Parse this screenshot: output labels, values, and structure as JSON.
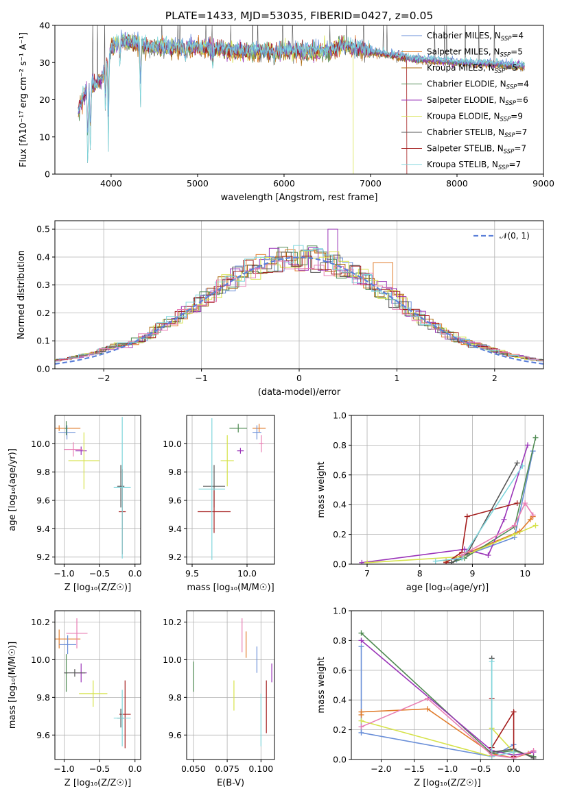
{
  "colors": {
    "chabrier_miles": "#6a8fd8",
    "salpeter_miles": "#e07b2a",
    "kroupa_miles": "#ab6b10",
    "chabrier_elodie": "#4f8a52",
    "salpeter_elodie": "#9a34b8",
    "kroupa_elodie": "#d6e24a",
    "chabrier_stelib": "#555555",
    "salpeter_stelib": "#a41d1d",
    "kroupa_stelib": "#7fd6dc",
    "pink": "#e87db3",
    "normal_curve": "#5b7fd8"
  },
  "chart_data": [
    {
      "id": "spectrum",
      "type": "line",
      "title": "PLATE=1433, MJD=53035, FIBERID=0427, z=0.05",
      "xlabel": "wavelength [Angstrom, rest frame]",
      "ylabel": "Flux [fλ10⁻¹⁷ erg cm⁻² s⁻¹ A⁻¹]",
      "xlim": [
        3350,
        9000
      ],
      "ylim": [
        0,
        40
      ],
      "xticks": [
        "4000",
        "5000",
        "6000",
        "7000",
        "8000",
        "9000"
      ],
      "yticks": [
        "0",
        "10",
        "20",
        "30",
        "40"
      ],
      "legend_position": "top-right",
      "grid": false,
      "legend": [
        {
          "name": "Chabrier MILES, N",
          "sub": "SSP",
          "val": "=4"
        },
        {
          "name": "Salpeter MILES, N",
          "sub": "SSP",
          "val": "=5"
        },
        {
          "name": "Kroupa MILES, N",
          "sub": "SSP",
          "val": "=5"
        },
        {
          "name": "Chabrier ELODIE, N",
          "sub": "SSP",
          "val": "=4"
        },
        {
          "name": "Salpeter ELODIE, N",
          "sub": "SSP",
          "val": "=6"
        },
        {
          "name": "Kroupa ELODIE, N",
          "sub": "SSP",
          "val": "=9"
        },
        {
          "name": "Chabrier STELIB, N",
          "sub": "SSP",
          "val": "=7"
        },
        {
          "name": "Salpeter STELIB, N",
          "sub": "SSP",
          "val": "=7"
        },
        {
          "name": "Kroupa STELIB, N",
          "sub": "SSP",
          "val": "=7"
        }
      ],
      "continuum": [
        [
          3620,
          17
        ],
        [
          3700,
          22
        ],
        [
          3800,
          24
        ],
        [
          3900,
          26
        ],
        [
          3950,
          30
        ],
        [
          4000,
          34
        ],
        [
          4100,
          36
        ],
        [
          4300,
          35
        ],
        [
          4500,
          34
        ],
        [
          5000,
          34
        ],
        [
          5500,
          33
        ],
        [
          6000,
          33
        ],
        [
          6500,
          33
        ],
        [
          6700,
          35
        ],
        [
          6800,
          34
        ],
        [
          7000,
          33
        ],
        [
          7500,
          31
        ],
        [
          8000,
          30
        ],
        [
          8500,
          29.5
        ],
        [
          8800,
          29
        ]
      ],
      "absorption_lines": [
        [
          3730,
          0
        ],
        [
          3760,
          4
        ],
        [
          3934,
          15
        ],
        [
          3968,
          6
        ],
        [
          4102,
          28
        ],
        [
          4340,
          18
        ],
        [
          4861,
          30
        ],
        [
          5175,
          28
        ],
        [
          5890,
          29
        ]
      ]
    },
    {
      "id": "residuals",
      "type": "histogram",
      "xlabel": "(data-model)/error",
      "ylabel": "Normed distribution",
      "xlim": [
        -2.5,
        2.5
      ],
      "ylim": [
        0,
        0.53
      ],
      "xticks": [
        "−2",
        "−1",
        "0",
        "1",
        "2"
      ],
      "yticks": [
        "0.0",
        "0.1",
        "0.2",
        "0.3",
        "0.4",
        "0.5"
      ],
      "grid": true,
      "legend_position": "top-right",
      "legend": [
        "𝒩(0, 1)"
      ],
      "bin_width": 0.1
    },
    {
      "id": "age_vs_z",
      "type": "errorbar",
      "xlabel": "Z [log₁₀(Z/Z☉)]",
      "ylabel": "age  [log₁₀(age/yr)]",
      "xlim": [
        -1.13,
        0.08
      ],
      "ylim": [
        9.15,
        10.2
      ],
      "xticks": [
        "−1.0",
        "−0.5",
        "0.0"
      ],
      "yticks": [
        "9.2",
        "9.4",
        "9.6",
        "9.8",
        "10.0"
      ],
      "grid": true,
      "points": [
        {
          "c": "salpeter_miles",
          "x": -1.07,
          "y": 10.11,
          "xe": 0.3,
          "ye": 0.02
        },
        {
          "c": "chabrier_miles",
          "x": -0.96,
          "y": 10.08,
          "xe": 0.12,
          "ye": 0.05
        },
        {
          "c": "chabrier_elodie",
          "x": -0.97,
          "y": 10.11,
          "xe": 0.02,
          "ye": 0.05
        },
        {
          "c": "salpeter_elodie",
          "x": -0.76,
          "y": 9.95,
          "xe": 0.08,
          "ye": 0.03
        },
        {
          "c": "pink",
          "x": -0.87,
          "y": 9.96,
          "xe": 0.13,
          "ye": 0.05
        },
        {
          "c": "kroupa_elodie",
          "x": -0.72,
          "y": 9.88,
          "xe": 0.22,
          "ye": 0.2
        },
        {
          "c": "chabrier_stelib",
          "x": -0.2,
          "y": 9.7,
          "xe": 0.05,
          "ye": 0.15
        },
        {
          "c": "salpeter_stelib",
          "x": -0.18,
          "y": 9.52,
          "xe": 0.05,
          "ye": 0.3
        },
        {
          "c": "kroupa_stelib",
          "x": -0.18,
          "y": 9.69,
          "xe": 0.12,
          "ye": 0.5
        }
      ]
    },
    {
      "id": "age_vs_mass",
      "type": "errorbar",
      "xlabel": "mass [log₁₀(M/M☉)]",
      "ylabel": "",
      "xlim": [
        9.45,
        10.25
      ],
      "ylim": [
        9.15,
        10.2
      ],
      "xticks": [
        "9.5",
        "10.0"
      ],
      "yticks": [
        "9.2",
        "9.4",
        "9.6",
        "9.8",
        "10.0"
      ],
      "grid": true,
      "points": [
        {
          "c": "salpeter_miles",
          "x": 10.11,
          "y": 10.11,
          "xe": 0.06,
          "ye": 0.03
        },
        {
          "c": "chabrier_miles",
          "x": 10.09,
          "y": 10.08,
          "xe": 0.04,
          "ye": 0.05
        },
        {
          "c": "chabrier_elodie",
          "x": 9.92,
          "y": 10.11,
          "xe": 0.08,
          "ye": 0.03
        },
        {
          "c": "salpeter_elodie",
          "x": 9.94,
          "y": 9.95,
          "xe": 0.03,
          "ye": 0.02
        },
        {
          "c": "pink",
          "x": 10.13,
          "y": 10.0,
          "xe": 0.02,
          "ye": 0.06
        },
        {
          "c": "kroupa_elodie",
          "x": 9.82,
          "y": 9.88,
          "xe": 0.06,
          "ye": 0.18
        },
        {
          "c": "chabrier_stelib",
          "x": 9.7,
          "y": 9.7,
          "xe": 0.1,
          "ye": 0.15
        },
        {
          "c": "salpeter_stelib",
          "x": 9.7,
          "y": 9.52,
          "xe": 0.15,
          "ye": 0.15
        },
        {
          "c": "kroupa_stelib",
          "x": 9.68,
          "y": 9.68,
          "xe": 0.12,
          "ye": 0.5
        }
      ]
    },
    {
      "id": "weight_vs_age",
      "type": "line",
      "xlabel": "age  [log₁₀(age/yr)]",
      "ylabel": "mass weight",
      "xlim": [
        6.7,
        10.35
      ],
      "ylim": [
        0,
        1.0
      ],
      "xticks": [
        "7",
        "8",
        "9",
        "10"
      ],
      "yticks": [
        "0.0",
        "0.2",
        "0.4",
        "0.6",
        "0.8",
        "1.0"
      ],
      "grid": true,
      "series": [
        {
          "c": "chabrier_miles",
          "x": [
            8.7,
            8.8,
            9.8,
            10.15
          ],
          "y": [
            0.03,
            0.05,
            0.18,
            0.76
          ]
        },
        {
          "c": "salpeter_miles",
          "x": [
            8.5,
            8.8,
            9.9,
            10.1,
            10.15
          ],
          "y": [
            0.02,
            0.06,
            0.22,
            0.3,
            0.32
          ]
        },
        {
          "c": "chabrier_elodie",
          "x": [
            8.6,
            8.85,
            9.8,
            10.2
          ],
          "y": [
            0.01,
            0.04,
            0.25,
            0.85
          ]
        },
        {
          "c": "salpeter_elodie",
          "x": [
            6.9,
            8.85,
            9.3,
            9.6,
            10.05
          ],
          "y": [
            0.01,
            0.1,
            0.06,
            0.3,
            0.8
          ]
        },
        {
          "c": "kroupa_elodie",
          "x": [
            7.0,
            8.8,
            9.8,
            10.2
          ],
          "y": [
            0.01,
            0.05,
            0.2,
            0.26
          ]
        },
        {
          "c": "chabrier_stelib",
          "x": [
            8.6,
            8.9,
            9.85
          ],
          "y": [
            0.01,
            0.07,
            0.68
          ]
        },
        {
          "c": "salpeter_stelib",
          "x": [
            8.5,
            8.8,
            8.9,
            9.85
          ],
          "y": [
            0.01,
            0.08,
            0.32,
            0.41
          ]
        },
        {
          "c": "kroupa_stelib",
          "x": [
            8.3,
            8.8,
            9.95
          ],
          "y": [
            0.02,
            0.04,
            0.66
          ]
        },
        {
          "c": "pink",
          "x": [
            8.8,
            9.8,
            10.0,
            10.15
          ],
          "y": [
            0.06,
            0.26,
            0.41,
            0.33
          ]
        }
      ]
    },
    {
      "id": "mass_vs_z",
      "type": "errorbar",
      "xlabel": "Z [log₁₀(Z/Z☉)]",
      "ylabel": "mass [log₁₀(M/M☉)]",
      "xlim": [
        -1.13,
        0.08
      ],
      "ylim": [
        9.47,
        10.26
      ],
      "xticks": [
        "−1.0",
        "−0.5",
        "0.0"
      ],
      "yticks": [
        "9.6",
        "9.8",
        "10.0",
        "10.2"
      ],
      "grid": true,
      "points": [
        {
          "c": "salpeter_miles",
          "x": -1.07,
          "y": 10.11,
          "xe": 0.3,
          "ye": 0.05
        },
        {
          "c": "chabrier_miles",
          "x": -0.95,
          "y": 10.08,
          "xe": 0.12,
          "ye": 0.05
        },
        {
          "c": "pink",
          "x": -0.82,
          "y": 10.14,
          "xe": 0.15,
          "ye": 0.08
        },
        {
          "c": "chabrier_elodie",
          "x": -0.97,
          "y": 9.93,
          "xe": 0.02,
          "ye": 0.1
        },
        {
          "c": "salpeter_elodie",
          "x": -0.76,
          "y": 9.93,
          "xe": 0.08,
          "ye": 0.05
        },
        {
          "c": "chabrier_stelib",
          "x": -0.85,
          "y": 9.93,
          "xe": 0.15,
          "ye": 0.02
        },
        {
          "c": "kroupa_elodie",
          "x": -0.59,
          "y": 9.82,
          "xe": 0.2,
          "ye": 0.07
        },
        {
          "c": "salpeter_stelib",
          "x": -0.14,
          "y": 9.71,
          "xe": 0.08,
          "ye": 0.18
        },
        {
          "c": "chabrier_stelib",
          "x": -0.2,
          "y": 9.69,
          "xe": 0.05,
          "ye": 0.05
        },
        {
          "c": "kroupa_stelib",
          "x": -0.18,
          "y": 9.69,
          "xe": 0.12,
          "ye": 0.15
        }
      ]
    },
    {
      "id": "mass_vs_ebv",
      "type": "errorbar",
      "xlabel": "E(B-V)",
      "ylabel": "",
      "xlim": [
        0.045,
        0.11
      ],
      "ylim": [
        9.47,
        10.26
      ],
      "xticks": [
        "0.050",
        "0.075",
        "0.100"
      ],
      "yticks": [
        "9.6",
        "9.8",
        "10.0",
        "10.2"
      ],
      "grid": true,
      "points": [
        {
          "c": "chabrier_elodie",
          "x": 0.05,
          "y": 9.91,
          "xe": 0,
          "ye": 0.08
        },
        {
          "c": "kroupa_elodie",
          "x": 0.08,
          "y": 9.81,
          "xe": 0,
          "ye": 0.08
        },
        {
          "c": "pink",
          "x": 0.086,
          "y": 10.13,
          "xe": 0,
          "ye": 0.09
        },
        {
          "c": "salpeter_miles",
          "x": 0.089,
          "y": 10.08,
          "xe": 0,
          "ye": 0.07
        },
        {
          "c": "chabrier_miles",
          "x": 0.097,
          "y": 10.0,
          "xe": 0,
          "ye": 0.07
        },
        {
          "c": "kroupa_stelib",
          "x": 0.1,
          "y": 9.68,
          "xe": 0,
          "ye": 0.14
        },
        {
          "c": "salpeter_stelib",
          "x": 0.104,
          "y": 9.75,
          "xe": 0,
          "ye": 0.14
        },
        {
          "c": "salpeter_elodie",
          "x": 0.108,
          "y": 9.93,
          "xe": 0,
          "ye": 0.05
        }
      ]
    },
    {
      "id": "weight_vs_z",
      "type": "line",
      "xlabel": "Z [log₁₀(Z/Z☉)]",
      "ylabel": "mass weight",
      "xlim": [
        -2.45,
        0.45
      ],
      "ylim": [
        0,
        1.0
      ],
      "xticks": [
        "−2.0",
        "−1.5",
        "−1.0",
        "−0.5",
        "0.0"
      ],
      "yticks": [
        "0.0",
        "0.2",
        "0.4",
        "0.6",
        "0.8",
        "1.0"
      ],
      "grid": true,
      "series": [
        {
          "c": "chabrier_miles",
          "x": [
            -2.3,
            -2.3,
            -0.33,
            0.0,
            0.0
          ],
          "y": [
            0.76,
            0.18,
            0.02,
            0.1,
            0.02
          ]
        },
        {
          "c": "salpeter_miles",
          "x": [
            -2.3,
            -2.3,
            -1.3,
            -0.33,
            0.0,
            0.22
          ],
          "y": [
            0.3,
            0.32,
            0.34,
            0.04,
            0.01,
            0.04
          ]
        },
        {
          "c": "chabrier_elodie",
          "x": [
            -2.3,
            -0.33,
            0.0,
            0.3
          ],
          "y": [
            0.85,
            0.04,
            0.06,
            0.02
          ]
        },
        {
          "c": "salpeter_elodie",
          "x": [
            -2.3,
            -0.33,
            0.0,
            0.3
          ],
          "y": [
            0.8,
            0.06,
            0.03,
            0.05
          ]
        },
        {
          "c": "kroupa_elodie",
          "x": [
            -2.3,
            -0.33,
            -0.33,
            0.0
          ],
          "y": [
            0.26,
            0.02,
            0.21,
            0.05
          ]
        },
        {
          "c": "chabrier_stelib",
          "x": [
            -0.33,
            -0.33,
            0.0,
            0.3
          ],
          "y": [
            0.68,
            0.05,
            0.07,
            0.01
          ]
        },
        {
          "c": "salpeter_stelib",
          "x": [
            -0.33,
            -0.33,
            0.0,
            0.0
          ],
          "y": [
            0.41,
            0.08,
            0.32,
            0.02
          ]
        },
        {
          "c": "kroupa_stelib",
          "x": [
            -0.33,
            -0.33,
            0.0
          ],
          "y": [
            0.66,
            0.02,
            0.05
          ]
        },
        {
          "c": "pink",
          "x": [
            -2.3,
            -1.3,
            -0.33,
            0.0,
            0.3
          ],
          "y": [
            0.22,
            0.41,
            0.03,
            0.01,
            0.06
          ]
        }
      ]
    }
  ]
}
